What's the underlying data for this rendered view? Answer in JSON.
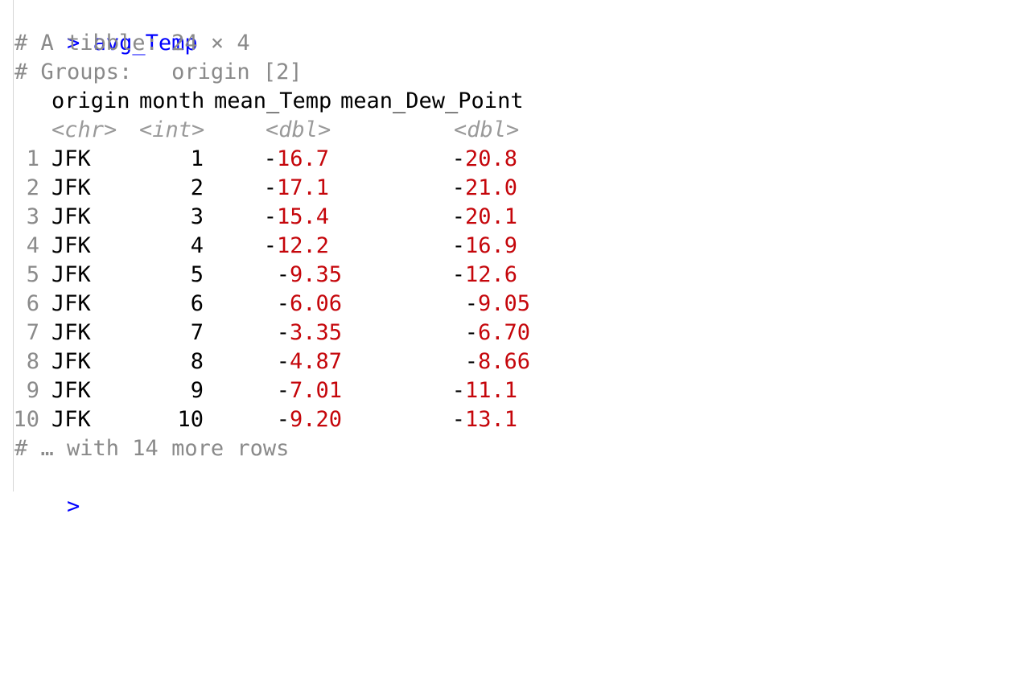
{
  "console": {
    "prompt_symbol": ">",
    "command": "avg_Temp",
    "info_lines": [
      "# A tibble: 24 × 4",
      "# Groups:   origin [2]"
    ],
    "header": {
      "columns": [
        "origin",
        "month",
        "mean_Temp",
        "mean_Dew_Point"
      ],
      "types": [
        "<chr>",
        "<int>",
        "<dbl>",
        "<dbl>"
      ]
    },
    "rows": [
      {
        "idx": "1",
        "origin": "JFK",
        "month": "1",
        "temp_sign": "-",
        "temp_val": "16.7",
        "dew_sign": "-",
        "dew_val": "20.8"
      },
      {
        "idx": "2",
        "origin": "JFK",
        "month": "2",
        "temp_sign": "-",
        "temp_val": "17.1",
        "dew_sign": "-",
        "dew_val": "21.0"
      },
      {
        "idx": "3",
        "origin": "JFK",
        "month": "3",
        "temp_sign": "-",
        "temp_val": "15.4",
        "dew_sign": "-",
        "dew_val": "20.1"
      },
      {
        "idx": "4",
        "origin": "JFK",
        "month": "4",
        "temp_sign": "-",
        "temp_val": "12.2",
        "dew_sign": "-",
        "dew_val": "16.9"
      },
      {
        "idx": "5",
        "origin": "JFK",
        "month": "5",
        "temp_sign": "-",
        "temp_val": "9.35",
        "dew_sign": "-",
        "dew_val": "12.6"
      },
      {
        "idx": "6",
        "origin": "JFK",
        "month": "6",
        "temp_sign": "-",
        "temp_val": "6.06",
        "dew_sign": "-",
        "dew_val": "9.05"
      },
      {
        "idx": "7",
        "origin": "JFK",
        "month": "7",
        "temp_sign": "-",
        "temp_val": "3.35",
        "dew_sign": "-",
        "dew_val": "6.70"
      },
      {
        "idx": "8",
        "origin": "JFK",
        "month": "8",
        "temp_sign": "-",
        "temp_val": "4.87",
        "dew_sign": "-",
        "dew_val": "8.66"
      },
      {
        "idx": "9",
        "origin": "JFK",
        "month": "9",
        "temp_sign": "-",
        "temp_val": "7.01",
        "dew_sign": "-",
        "dew_val": "11.1"
      },
      {
        "idx": "10",
        "origin": "JFK",
        "month": "10",
        "temp_sign": "-",
        "temp_val": "9.20",
        "dew_sign": "-",
        "dew_val": "13.1"
      }
    ],
    "footer": "# … with 14 more rows",
    "colors": {
      "prompt": "#0000ff",
      "comment": "#8a8a8a",
      "negative": "#c5060b"
    }
  }
}
